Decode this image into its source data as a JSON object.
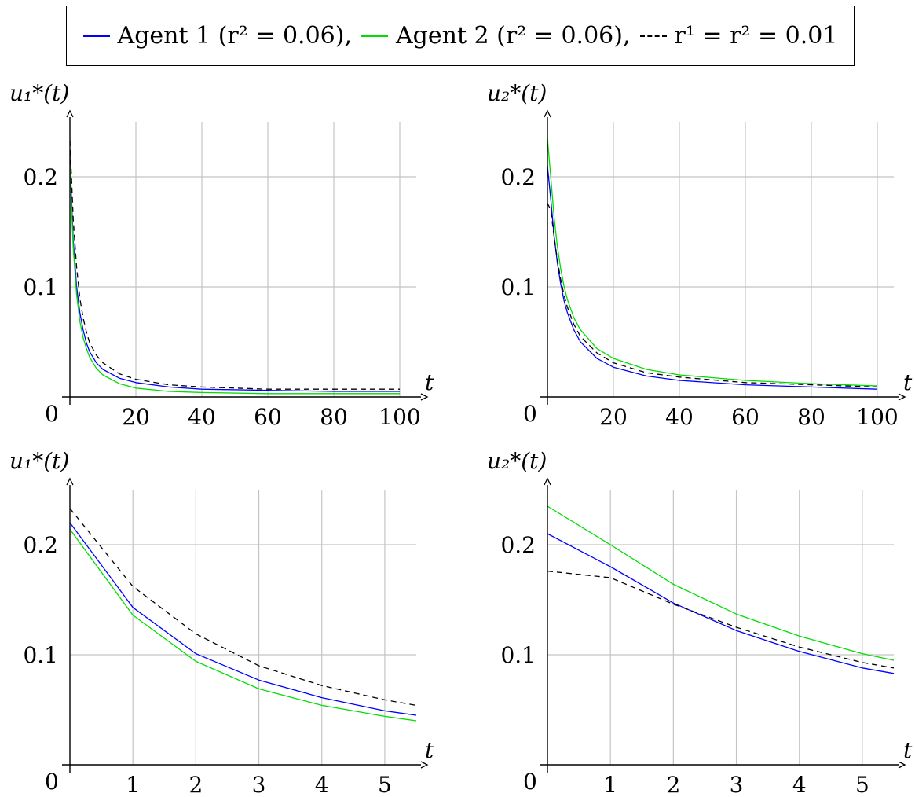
{
  "legend": [
    {
      "label": "Agent 1 (r² = 0.06),",
      "color": "#0000ff",
      "style": "solid"
    },
    {
      "label": "Agent 2 (r² = 0.06),",
      "color": "#00dd00",
      "style": "solid"
    },
    {
      "label": "r¹ = r² = 0.01",
      "color": "#000000",
      "style": "dashed"
    }
  ],
  "chart_data": [
    {
      "type": "line",
      "title": "",
      "ylabel": "u₁*(t)",
      "xlabel": "t",
      "xlim": [
        0,
        105
      ],
      "ylim": [
        0,
        0.25
      ],
      "grid": true,
      "origin_label": "0",
      "xticks": [
        20,
        40,
        60,
        80,
        100
      ],
      "yticks": [
        0.1,
        0.2
      ],
      "series": [
        {
          "name": "Agent 1",
          "color": "#0000ff",
          "dashed": false,
          "x": [
            0,
            0.5,
            1,
            2,
            3,
            4,
            5,
            6,
            8,
            10,
            15,
            20,
            30,
            40,
            60,
            80,
            100
          ],
          "y": [
            0.22,
            0.18,
            0.143,
            0.101,
            0.077,
            0.061,
            0.049,
            0.041,
            0.031,
            0.025,
            0.017,
            0.013,
            0.009,
            0.007,
            0.006,
            0.005,
            0.005
          ]
        },
        {
          "name": "Agent 2",
          "color": "#00dd00",
          "dashed": false,
          "x": [
            0,
            0.5,
            1,
            2,
            3,
            4,
            5,
            6,
            8,
            10,
            15,
            20,
            30,
            40,
            60,
            80,
            100
          ],
          "y": [
            0.214,
            0.173,
            0.136,
            0.094,
            0.069,
            0.054,
            0.044,
            0.036,
            0.026,
            0.02,
            0.012,
            0.008,
            0.005,
            0.004,
            0.003,
            0.003,
            0.003
          ]
        },
        {
          "name": "r¹ = r² = 0.01",
          "color": "#000000",
          "dashed": true,
          "x": [
            0,
            0.5,
            1,
            2,
            3,
            4,
            5,
            6,
            8,
            10,
            15,
            20,
            30,
            40,
            60,
            80,
            100
          ],
          "y": [
            0.233,
            0.198,
            0.162,
            0.119,
            0.09,
            0.072,
            0.059,
            0.049,
            0.038,
            0.031,
            0.021,
            0.016,
            0.011,
            0.009,
            0.007,
            0.007,
            0.007
          ]
        }
      ]
    },
    {
      "type": "line",
      "title": "",
      "ylabel": "u₂*(t)",
      "xlabel": "t",
      "xlim": [
        0,
        105
      ],
      "ylim": [
        0,
        0.25
      ],
      "grid": true,
      "origin_label": "0",
      "xticks": [
        20,
        40,
        60,
        80,
        100
      ],
      "yticks": [
        0.1,
        0.2
      ],
      "series": [
        {
          "name": "Agent 1",
          "color": "#0000ff",
          "dashed": false,
          "x": [
            0,
            1,
            2,
            3,
            4,
            5,
            6,
            8,
            10,
            15,
            20,
            30,
            40,
            60,
            80,
            100
          ],
          "y": [
            0.21,
            0.18,
            0.147,
            0.122,
            0.103,
            0.088,
            0.077,
            0.061,
            0.05,
            0.035,
            0.027,
            0.019,
            0.015,
            0.011,
            0.009,
            0.007
          ]
        },
        {
          "name": "Agent 2",
          "color": "#00dd00",
          "dashed": false,
          "x": [
            0,
            1,
            2,
            3,
            4,
            5,
            6,
            8,
            10,
            15,
            20,
            30,
            40,
            60,
            80,
            100
          ],
          "y": [
            0.235,
            0.2,
            0.164,
            0.137,
            0.117,
            0.101,
            0.089,
            0.072,
            0.061,
            0.044,
            0.035,
            0.025,
            0.02,
            0.015,
            0.012,
            0.01
          ]
        },
        {
          "name": "r¹ = r² = 0.01",
          "color": "#000000",
          "dashed": true,
          "x": [
            0,
            1,
            2,
            3,
            4,
            5,
            6,
            8,
            10,
            15,
            20,
            30,
            40,
            60,
            80,
            100
          ],
          "y": [
            0.176,
            0.17,
            0.146,
            0.125,
            0.107,
            0.093,
            0.082,
            0.066,
            0.055,
            0.04,
            0.031,
            0.022,
            0.018,
            0.013,
            0.011,
            0.009
          ]
        }
      ]
    },
    {
      "type": "line",
      "title": "",
      "ylabel": "u₁*(t)",
      "xlabel": "t",
      "xlim": [
        0,
        5.5
      ],
      "ylim": [
        0,
        0.25
      ],
      "grid": true,
      "origin_label": "0",
      "xticks": [
        1,
        2,
        3,
        4,
        5
      ],
      "yticks": [
        0.1,
        0.2
      ],
      "series": [
        {
          "name": "Agent 1",
          "color": "#0000ff",
          "dashed": false,
          "x": [
            0,
            1,
            2,
            3,
            4,
            5,
            5.5
          ],
          "y": [
            0.22,
            0.143,
            0.101,
            0.077,
            0.061,
            0.049,
            0.045
          ]
        },
        {
          "name": "Agent 2",
          "color": "#00dd00",
          "dashed": false,
          "x": [
            0,
            1,
            2,
            3,
            4,
            5,
            5.5
          ],
          "y": [
            0.214,
            0.136,
            0.094,
            0.069,
            0.054,
            0.044,
            0.04
          ]
        },
        {
          "name": "r¹ = r² = 0.01",
          "color": "#000000",
          "dashed": true,
          "x": [
            0,
            1,
            2,
            3,
            4,
            5,
            5.5
          ],
          "y": [
            0.233,
            0.162,
            0.119,
            0.09,
            0.072,
            0.059,
            0.054
          ]
        }
      ]
    },
    {
      "type": "line",
      "title": "",
      "ylabel": "u₂*(t)",
      "xlabel": "t",
      "xlim": [
        0,
        5.5
      ],
      "ylim": [
        0,
        0.25
      ],
      "grid": true,
      "origin_label": "0",
      "xticks": [
        1,
        2,
        3,
        4,
        5
      ],
      "yticks": [
        0.1,
        0.2
      ],
      "series": [
        {
          "name": "Agent 1",
          "color": "#0000ff",
          "dashed": false,
          "x": [
            0,
            1,
            2,
            3,
            4,
            5,
            5.5
          ],
          "y": [
            0.21,
            0.18,
            0.147,
            0.122,
            0.103,
            0.088,
            0.083
          ]
        },
        {
          "name": "Agent 2",
          "color": "#00dd00",
          "dashed": false,
          "x": [
            0,
            1,
            2,
            3,
            4,
            5,
            5.5
          ],
          "y": [
            0.235,
            0.2,
            0.164,
            0.137,
            0.117,
            0.101,
            0.095
          ]
        },
        {
          "name": "r¹ = r² = 0.01",
          "color": "#000000",
          "dashed": true,
          "x": [
            0,
            1,
            2,
            3,
            4,
            5,
            5.5
          ],
          "y": [
            0.176,
            0.17,
            0.146,
            0.125,
            0.107,
            0.093,
            0.088
          ]
        }
      ]
    }
  ]
}
